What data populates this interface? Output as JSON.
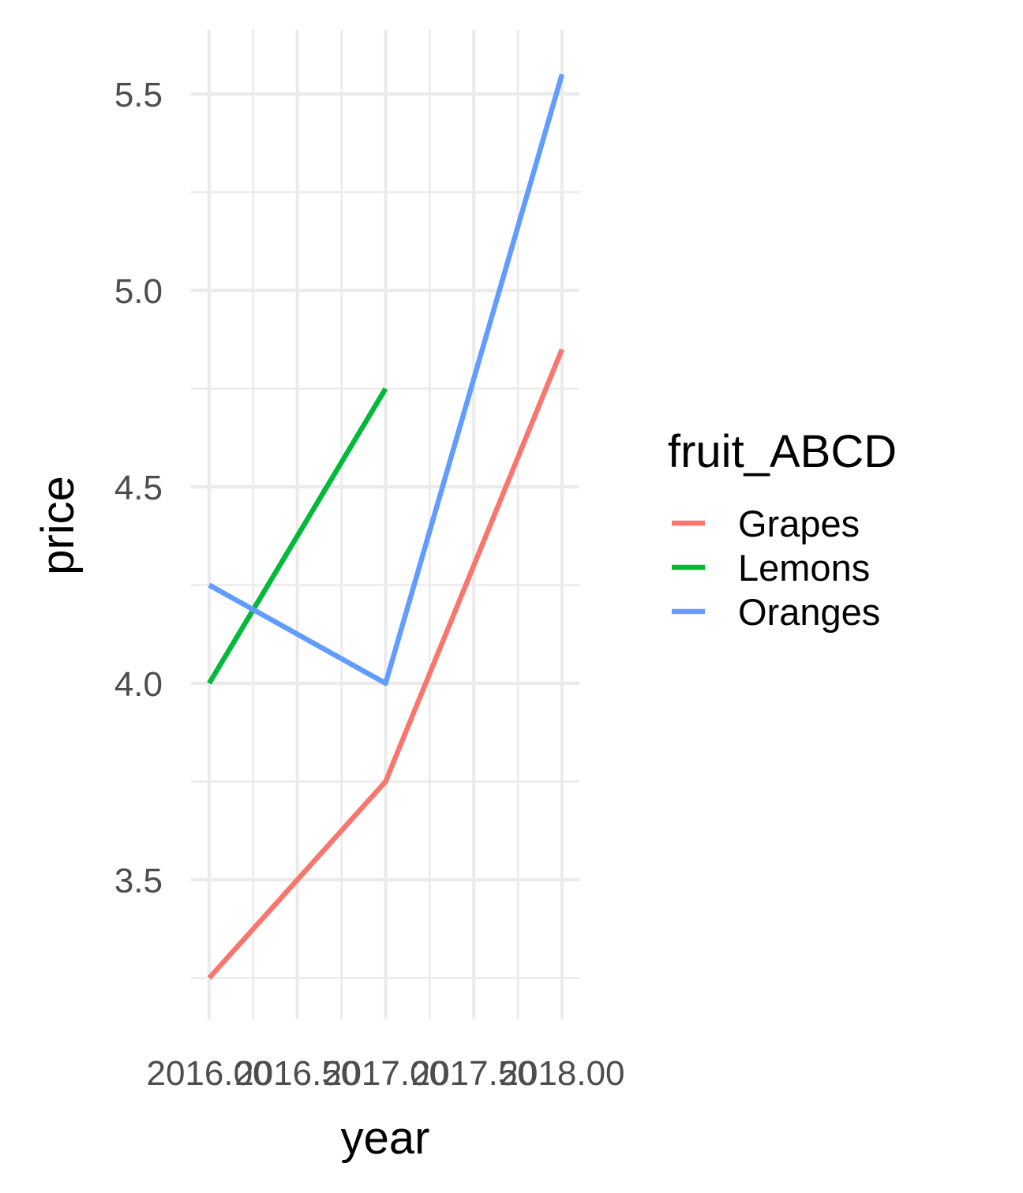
{
  "chart_data": {
    "type": "line",
    "xlabel": "year",
    "ylabel": "price",
    "xlim": [
      2016.0,
      2018.0
    ],
    "ylim": [
      3.22,
      5.66
    ],
    "x_ticks": [
      2016.0,
      2016.25,
      2016.5,
      2016.75,
      2017.0,
      2017.25,
      2017.5,
      2017.75,
      2018.0
    ],
    "x_tick_labels": [
      "2016.00",
      "2016.25",
      "2016.50",
      "2016.75",
      "2017.00",
      "2017.25",
      "2017.50",
      "2017.75",
      "2018.00"
    ],
    "y_major_ticks": [
      3.5,
      4.0,
      4.5,
      5.0,
      5.5
    ],
    "y_tick_labels": [
      "3.5",
      "4.0",
      "4.5",
      "5.0",
      "5.5"
    ],
    "y_minor_ticks": [
      3.25,
      3.75,
      4.25,
      4.75,
      5.25
    ],
    "grid": true,
    "legend": {
      "title": "fruit_ABCD",
      "position": "right"
    },
    "series": [
      {
        "name": "Grapes",
        "color": "#F8766D",
        "x": [
          2016,
          2017,
          2018
        ],
        "values": [
          3.25,
          3.75,
          4.85
        ]
      },
      {
        "name": "Lemons",
        "color": "#00BA38",
        "x": [
          2016,
          2017
        ],
        "values": [
          4.0,
          4.75
        ]
      },
      {
        "name": "Oranges",
        "color": "#619CFF",
        "x": [
          2016,
          2017,
          2018
        ],
        "values": [
          4.25,
          4.0,
          5.55
        ]
      }
    ]
  }
}
